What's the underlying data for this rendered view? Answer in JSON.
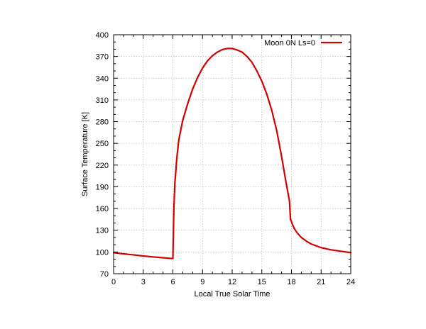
{
  "chart_data": {
    "type": "line",
    "title": "",
    "xlabel": "Local True Solar Time",
    "ylabel": "Surface Temperature [K]",
    "xlim": [
      0,
      24
    ],
    "ylim": [
      70,
      400
    ],
    "xticks": [
      0,
      3,
      6,
      9,
      12,
      15,
      18,
      21,
      24
    ],
    "yticks": [
      70,
      100,
      130,
      160,
      190,
      220,
      250,
      280,
      310,
      340,
      370,
      400
    ],
    "grid": true,
    "legend_position": "top-right",
    "series": [
      {
        "name": "Moon 0N Ls=0",
        "color": "#d40000",
        "x": [
          0,
          1,
          2,
          3,
          4,
          5,
          5.9,
          6.0,
          6.1,
          6.2,
          6.4,
          6.6,
          7.0,
          7.5,
          8,
          8.5,
          9,
          9.5,
          10,
          10.5,
          11,
          11.5,
          12,
          12.5,
          13,
          13.5,
          14,
          14.5,
          15,
          15.5,
          16,
          16.5,
          17,
          17.4,
          17.6,
          17.8,
          17.9,
          18.0,
          18.1,
          18.3,
          18.6,
          19,
          19.5,
          20,
          21,
          22,
          23,
          24
        ],
        "y": [
          99,
          97.5,
          96,
          94.5,
          93.2,
          92,
          91,
          91,
          160,
          195,
          230,
          255,
          282,
          305,
          325,
          341,
          354,
          364,
          371,
          376,
          379.5,
          381,
          381,
          379,
          376,
          370,
          362,
          350,
          336,
          318,
          296,
          268,
          232,
          200,
          185,
          170,
          145,
          142,
          138,
          132,
          126,
          120,
          115,
          111,
          106,
          103,
          101,
          99
        ]
      }
    ]
  }
}
